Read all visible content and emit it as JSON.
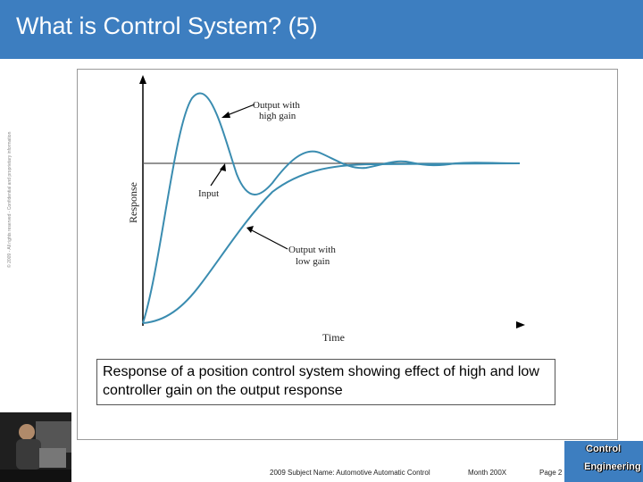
{
  "slide": {
    "title": "What is Control System? (5)",
    "side_note": "© 2009 - All rights reserved - Confidential and proprietary information"
  },
  "diagram": {
    "y_axis_label": "Response",
    "x_axis_label": "Time",
    "annotations": {
      "high_gain_line1": "Output with",
      "high_gain_line2": "high gain",
      "input": "Input",
      "low_gain_line1": "Output with",
      "low_gain_line2": "low gain"
    },
    "colors": {
      "curve": "#3a8cb0",
      "input": "#555555",
      "axis": "#000000"
    }
  },
  "caption": "Response of a position control system showing effect of high and low controller gain on the output response",
  "footer": {
    "subject": "2009 Subject Name: Automotive Automatic Control",
    "date": "Month 200X",
    "page": "Page 2",
    "logo_line1": "Control",
    "logo_line2": "Engineering"
  }
}
